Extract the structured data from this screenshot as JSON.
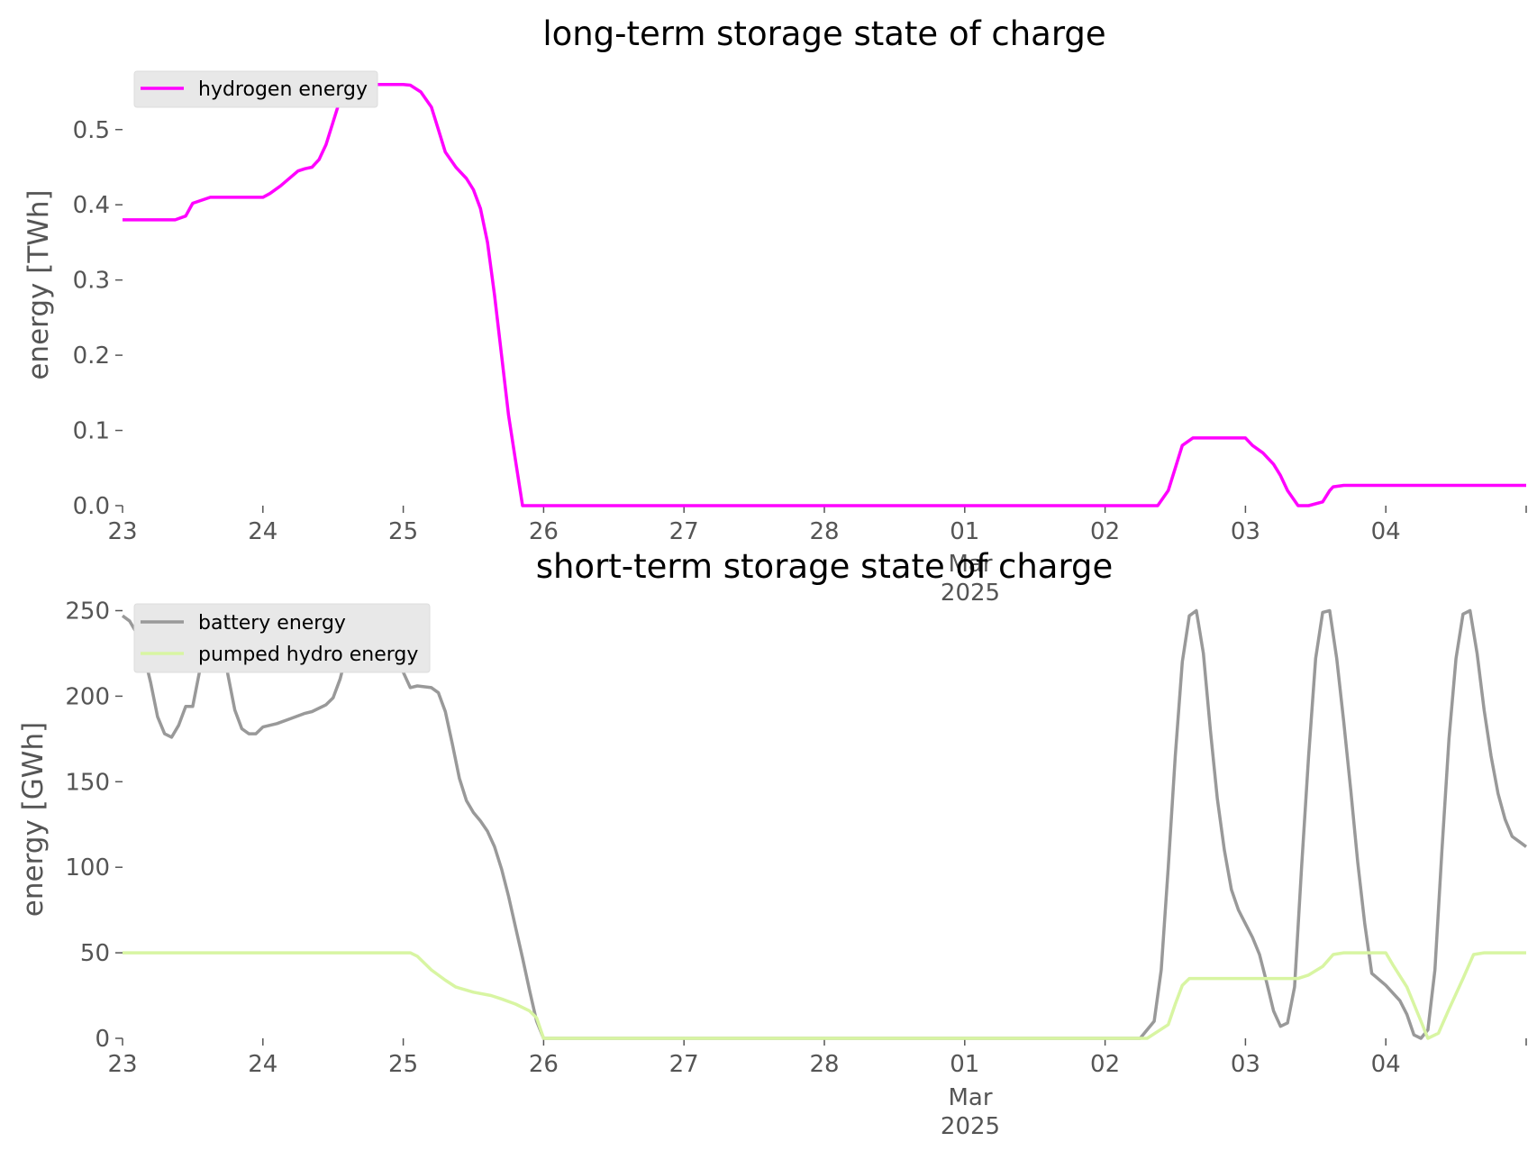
{
  "chart_data": [
    {
      "type": "line",
      "title": "long-term storage state of charge",
      "xlabel": "",
      "ylabel": "energy [TWh]",
      "ylim": [
        0,
        0.58
      ],
      "yticks": [
        0.0,
        0.1,
        0.2,
        0.3,
        0.4,
        0.5
      ],
      "ytick_labels": [
        "0.0",
        "0.1",
        "0.2",
        "0.3",
        "0.4",
        "0.5"
      ],
      "xlim_days": [
        0,
        10
      ],
      "xtick_labels": [
        "23",
        "24",
        "25",
        "26",
        "27",
        "28",
        "01",
        "02",
        "03",
        "04"
      ],
      "x_secondary_label": [
        "Mar",
        "2025"
      ],
      "grid": false,
      "legend_position": "top-left",
      "series": [
        {
          "name": "hydrogen energy",
          "color": "#ff00ff",
          "points": [
            [
              0,
              0.38
            ],
            [
              0.375,
              0.38
            ],
            [
              0.45,
              0.385
            ],
            [
              0.5,
              0.402
            ],
            [
              0.625,
              0.41
            ],
            [
              1.0,
              0.41
            ],
            [
              1.05,
              0.415
            ],
            [
              1.125,
              0.425
            ],
            [
              1.25,
              0.445
            ],
            [
              1.3,
              0.448
            ],
            [
              1.35,
              0.45
            ],
            [
              1.4,
              0.46
            ],
            [
              1.45,
              0.48
            ],
            [
              1.5,
              0.51
            ],
            [
              1.55,
              0.54
            ],
            [
              1.6,
              0.55
            ],
            [
              1.625,
              0.555
            ],
            [
              1.7,
              0.56
            ],
            [
              2.0,
              0.56
            ],
            [
              2.05,
              0.559
            ],
            [
              2.125,
              0.55
            ],
            [
              2.2,
              0.53
            ],
            [
              2.25,
              0.5
            ],
            [
              2.3,
              0.47
            ],
            [
              2.375,
              0.45
            ],
            [
              2.45,
              0.435
            ],
            [
              2.5,
              0.42
            ],
            [
              2.55,
              0.395
            ],
            [
              2.6,
              0.35
            ],
            [
              2.65,
              0.28
            ],
            [
              2.7,
              0.2
            ],
            [
              2.75,
              0.12
            ],
            [
              2.8,
              0.06
            ],
            [
              2.85,
              0.0
            ],
            [
              7.0,
              0.0
            ],
            [
              7.375,
              0.0
            ],
            [
              7.45,
              0.02
            ],
            [
              7.5,
              0.05
            ],
            [
              7.55,
              0.08
            ],
            [
              7.625,
              0.09
            ],
            [
              8.0,
              0.09
            ],
            [
              8.05,
              0.08
            ],
            [
              8.125,
              0.07
            ],
            [
              8.2,
              0.055
            ],
            [
              8.25,
              0.04
            ],
            [
              8.3,
              0.02
            ],
            [
              8.375,
              0.0
            ],
            [
              8.45,
              0.0
            ],
            [
              8.55,
              0.005
            ],
            [
              8.6,
              0.02
            ],
            [
              8.625,
              0.025
            ],
            [
              8.7,
              0.027
            ],
            [
              10.0,
              0.027
            ]
          ]
        }
      ]
    },
    {
      "type": "line",
      "title": "short-term storage state of charge",
      "xlabel": "",
      "ylabel": "energy [GWh]",
      "ylim": [
        0,
        255
      ],
      "yticks": [
        0,
        50,
        100,
        150,
        200,
        250
      ],
      "ytick_labels": [
        "0",
        "50",
        "100",
        "150",
        "200",
        "250"
      ],
      "xlim_days": [
        0,
        10
      ],
      "xtick_labels": [
        "23",
        "24",
        "25",
        "26",
        "27",
        "28",
        "01",
        "02",
        "03",
        "04"
      ],
      "x_secondary_label": [
        "Mar",
        "2025"
      ],
      "grid": false,
      "legend_position": "top-left",
      "series": [
        {
          "name": "battery energy",
          "color": "#999999",
          "points": [
            [
              0,
              247
            ],
            [
              0.05,
              244
            ],
            [
              0.1,
              237
            ],
            [
              0.15,
              225
            ],
            [
              0.2,
              208
            ],
            [
              0.25,
              188
            ],
            [
              0.3,
              178
            ],
            [
              0.35,
              176
            ],
            [
              0.4,
              183
            ],
            [
              0.45,
              194
            ],
            [
              0.5,
              194
            ],
            [
              0.55,
              215
            ],
            [
              0.6,
              242
            ],
            [
              0.65,
              250
            ],
            [
              0.7,
              240
            ],
            [
              0.75,
              213
            ],
            [
              0.8,
              192
            ],
            [
              0.85,
              181
            ],
            [
              0.9,
              178
            ],
            [
              0.95,
              178
            ],
            [
              1.0,
              182
            ],
            [
              1.1,
              184
            ],
            [
              1.2,
              187
            ],
            [
              1.3,
              190
            ],
            [
              1.35,
              191
            ],
            [
              1.45,
              195
            ],
            [
              1.5,
              199
            ],
            [
              1.55,
              210
            ],
            [
              1.6,
              226
            ],
            [
              1.65,
              245
            ],
            [
              1.7,
              250
            ],
            [
              1.75,
              245
            ],
            [
              1.85,
              229
            ],
            [
              1.9,
              222
            ],
            [
              2.0,
              214
            ],
            [
              2.05,
              205
            ],
            [
              2.1,
              206
            ],
            [
              2.2,
              205
            ],
            [
              2.25,
              202
            ],
            [
              2.3,
              191
            ],
            [
              2.35,
              172
            ],
            [
              2.4,
              152
            ],
            [
              2.45,
              139
            ],
            [
              2.5,
              132
            ],
            [
              2.55,
              127
            ],
            [
              2.6,
              121
            ],
            [
              2.65,
              112
            ],
            [
              2.7,
              99
            ],
            [
              2.75,
              83
            ],
            [
              2.8,
              65
            ],
            [
              2.85,
              47
            ],
            [
              2.9,
              28
            ],
            [
              2.95,
              10
            ],
            [
              3.0,
              0
            ],
            [
              7.25,
              0
            ],
            [
              7.35,
              10
            ],
            [
              7.4,
              40
            ],
            [
              7.45,
              100
            ],
            [
              7.5,
              165
            ],
            [
              7.55,
              220
            ],
            [
              7.6,
              247
            ],
            [
              7.65,
              250
            ],
            [
              7.7,
              225
            ],
            [
              7.75,
              180
            ],
            [
              7.8,
              140
            ],
            [
              7.85,
              110
            ],
            [
              7.9,
              87
            ],
            [
              7.95,
              75
            ],
            [
              8.0,
              67
            ],
            [
              8.05,
              59
            ],
            [
              8.1,
              49
            ],
            [
              8.15,
              33
            ],
            [
              8.2,
              16
            ],
            [
              8.25,
              7
            ],
            [
              8.3,
              9
            ],
            [
              8.35,
              30
            ],
            [
              8.4,
              100
            ],
            [
              8.45,
              165
            ],
            [
              8.5,
              222
            ],
            [
              8.55,
              249
            ],
            [
              8.6,
              250
            ],
            [
              8.65,
              222
            ],
            [
              8.7,
              185
            ],
            [
              8.75,
              145
            ],
            [
              8.8,
              103
            ],
            [
              8.85,
              67
            ],
            [
              8.9,
              38
            ],
            [
              9.0,
              31
            ],
            [
              9.1,
              22
            ],
            [
              9.15,
              14
            ],
            [
              9.2,
              2
            ],
            [
              9.25,
              0
            ],
            [
              9.3,
              5
            ],
            [
              9.35,
              40
            ],
            [
              9.4,
              110
            ],
            [
              9.45,
              175
            ],
            [
              9.5,
              222
            ],
            [
              9.55,
              248
            ],
            [
              9.6,
              250
            ],
            [
              9.65,
              225
            ],
            [
              9.7,
              192
            ],
            [
              9.75,
              165
            ],
            [
              9.8,
              143
            ],
            [
              9.85,
              128
            ],
            [
              9.9,
              118
            ],
            [
              9.95,
              115
            ],
            [
              10.0,
              112
            ]
          ]
        },
        {
          "name": "pumped hydro energy",
          "color": "#d8f5a2",
          "points": [
            [
              0,
              50
            ],
            [
              2.05,
              50
            ],
            [
              2.1,
              48
            ],
            [
              2.2,
              40
            ],
            [
              2.3,
              34
            ],
            [
              2.375,
              30
            ],
            [
              2.5,
              27
            ],
            [
              2.625,
              25
            ],
            [
              2.7,
              23
            ],
            [
              2.8,
              20
            ],
            [
              2.9,
              16
            ],
            [
              2.95,
              12
            ],
            [
              3.0,
              0
            ],
            [
              7.3,
              0
            ],
            [
              7.45,
              8
            ],
            [
              7.5,
              20
            ],
            [
              7.55,
              31
            ],
            [
              7.6,
              35
            ],
            [
              7.625,
              35
            ],
            [
              8.375,
              35
            ],
            [
              8.45,
              37
            ],
            [
              8.55,
              42
            ],
            [
              8.625,
              49
            ],
            [
              8.7,
              50
            ],
            [
              9.0,
              50
            ],
            [
              9.05,
              43
            ],
            [
              9.15,
              30
            ],
            [
              9.25,
              10
            ],
            [
              9.3,
              0
            ],
            [
              9.375,
              3
            ],
            [
              9.45,
              17
            ],
            [
              9.55,
              35
            ],
            [
              9.625,
              49
            ],
            [
              9.7,
              50
            ],
            [
              10.0,
              50
            ]
          ]
        }
      ]
    }
  ]
}
